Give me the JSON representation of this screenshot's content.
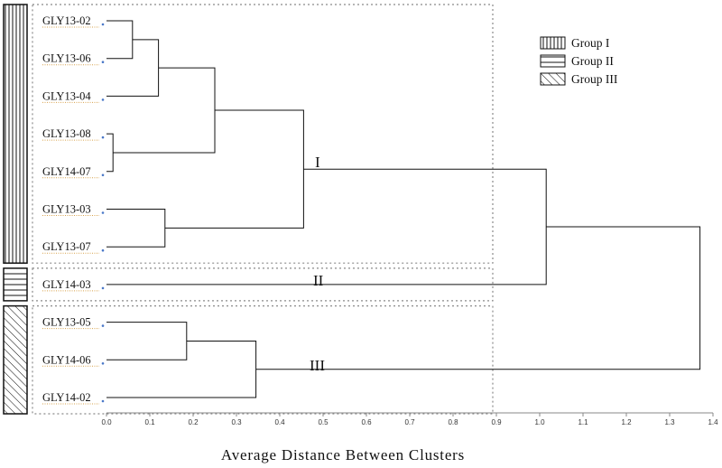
{
  "leaves": [
    {
      "id": "GLY13-02",
      "label": "GLY13-02"
    },
    {
      "id": "GLY13-06",
      "label": "GLY13-06"
    },
    {
      "id": "GLY13-04",
      "label": "GLY13-04"
    },
    {
      "id": "GLY13-08",
      "label": "GLY13-08"
    },
    {
      "id": "GLY14-07",
      "label": "GLY14-07"
    },
    {
      "id": "GLY13-03",
      "label": "GLY13-03"
    },
    {
      "id": "GLY13-07",
      "label": "GLY13-07"
    },
    {
      "id": "GLY14-03",
      "label": "GLY14-03"
    },
    {
      "id": "GLY13-05",
      "label": "GLY13-05"
    },
    {
      "id": "GLY14-06",
      "label": "GLY14-06"
    },
    {
      "id": "GLY14-02",
      "label": "GLY14-02"
    }
  ],
  "merges": [
    {
      "children": [
        "GLY13-02",
        "GLY13-06"
      ],
      "distance": 0.06
    },
    {
      "children": [
        0,
        "GLY13-04"
      ],
      "distance": 0.12
    },
    {
      "children": [
        "GLY13-08",
        "GLY14-07"
      ],
      "distance": 0.015
    },
    {
      "children": [
        1,
        2
      ],
      "distance": 0.25
    },
    {
      "children": [
        "GLY13-03",
        "GLY13-07"
      ],
      "distance": 0.135
    },
    {
      "children": [
        3,
        4
      ],
      "distance": 0.455
    },
    {
      "children": [
        5,
        "GLY14-03"
      ],
      "distance": 1.015
    },
    {
      "children": [
        "GLY13-05",
        "GLY14-06"
      ],
      "distance": 0.185
    },
    {
      "children": [
        7,
        "GLY14-02"
      ],
      "distance": 0.345
    },
    {
      "children": [
        6,
        8
      ],
      "distance": 1.37
    }
  ],
  "axis": {
    "title": "Average Distance Between Clusters",
    "min": 0.0,
    "max": 1.4,
    "ticks": [
      "0.0",
      "0.1",
      "0.2",
      "0.3",
      "0.4",
      "0.5",
      "0.6",
      "0.7",
      "0.8",
      "0.9",
      "1.0",
      "1.1",
      "1.2",
      "1.3",
      "1.4"
    ]
  },
  "clusters": [
    {
      "label": "I",
      "group": "Group I",
      "pattern": "vertical",
      "leaves": [
        "GLY13-02",
        "GLY13-06",
        "GLY13-04",
        "GLY13-08",
        "GLY14-07",
        "GLY13-03",
        "GLY13-07"
      ]
    },
    {
      "label": "II",
      "group": "Group II",
      "pattern": "horizontal",
      "leaves": [
        "GLY14-03"
      ]
    },
    {
      "label": "III",
      "group": "Group III",
      "pattern": "diagonal",
      "leaves": [
        "GLY13-05",
        "GLY14-06",
        "GLY14-02"
      ]
    }
  ],
  "legend": [
    {
      "label": "Group I",
      "pattern": "vertical"
    },
    {
      "label": "Group II",
      "pattern": "horizontal"
    },
    {
      "label": "Group III",
      "pattern": "diagonal"
    }
  ]
}
